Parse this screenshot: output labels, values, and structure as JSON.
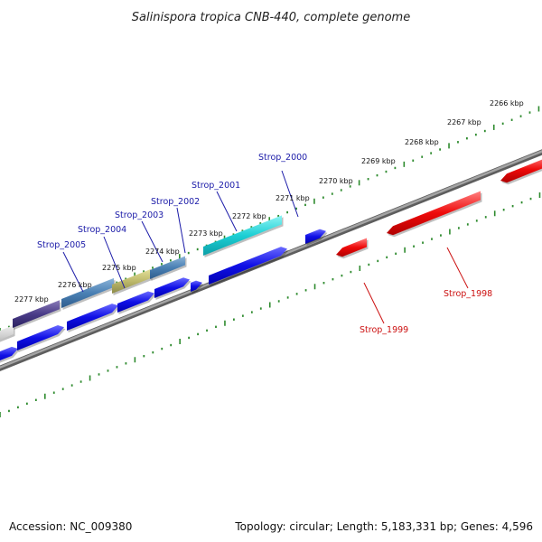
{
  "title": "Salinispora tropica CNB-440, complete genome",
  "footer": {
    "accession": "Accession: NC_009380",
    "summary": "Topology: circular; Length: 5,183,331 bp; Genes: 4,596"
  },
  "colors": {
    "backbone": "#7d7d7d",
    "ruler_dots": "#2e8b2e",
    "forward_label": "#1a1aa8",
    "reverse_label": "#cc1111",
    "forward_cds": "#1010e0",
    "reverse_cds": "#ee0a0a"
  },
  "kbp_labels": [
    "2266 kbp",
    "2267 kbp",
    "2268 kbp",
    "2269 kbp",
    "2270 kbp",
    "2271 kbp",
    "2272 kbp",
    "2273 kbp",
    "2274 kbp",
    "2275 kbp",
    "2276 kbp",
    "2277 kbp"
  ],
  "gene_labels": {
    "forward": [
      "Strop_2000",
      "Strop_2001",
      "Strop_2002",
      "Strop_2003",
      "Strop_2004",
      "Strop_2005"
    ],
    "reverse": [
      "Strop_1998",
      "Strop_1999"
    ]
  }
}
